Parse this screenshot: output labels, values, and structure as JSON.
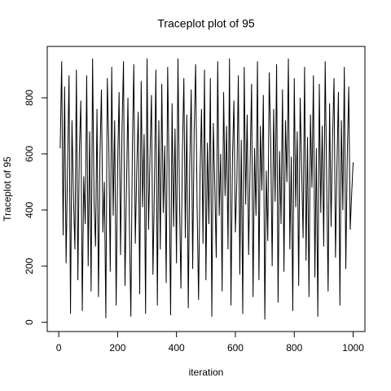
{
  "chart_data": {
    "type": "line",
    "title": "Traceplot plot of 95",
    "x_label": "iteration",
    "y_label": "Traceplot of 95",
    "xlim": [
      -39,
      1040
    ],
    "ylim": [
      -33,
      983
    ],
    "xticks": [
      0,
      200,
      400,
      600,
      800,
      1000
    ],
    "yticks": [
      0,
      200,
      400,
      600,
      800
    ],
    "color": "#000000",
    "x": [
      5,
      10,
      15,
      20,
      25,
      30,
      35,
      40,
      45,
      50,
      55,
      60,
      65,
      70,
      75,
      80,
      85,
      90,
      95,
      100,
      105,
      110,
      115,
      120,
      125,
      130,
      135,
      140,
      145,
      150,
      155,
      160,
      165,
      170,
      175,
      180,
      185,
      190,
      195,
      200,
      205,
      210,
      215,
      220,
      225,
      230,
      235,
      240,
      245,
      250,
      255,
      260,
      265,
      270,
      275,
      280,
      285,
      290,
      295,
      300,
      305,
      310,
      315,
      320,
      325,
      330,
      335,
      340,
      345,
      350,
      355,
      360,
      365,
      370,
      375,
      380,
      385,
      390,
      395,
      400,
      405,
      410,
      415,
      420,
      425,
      430,
      435,
      440,
      445,
      450,
      455,
      460,
      465,
      470,
      475,
      480,
      485,
      490,
      495,
      500,
      505,
      510,
      515,
      520,
      525,
      530,
      535,
      540,
      545,
      550,
      555,
      560,
      565,
      570,
      575,
      580,
      585,
      590,
      595,
      600,
      605,
      610,
      615,
      620,
      625,
      630,
      635,
      640,
      645,
      650,
      655,
      660,
      665,
      670,
      675,
      680,
      685,
      690,
      695,
      700,
      705,
      710,
      715,
      720,
      725,
      730,
      735,
      740,
      745,
      750,
      755,
      760,
      765,
      770,
      775,
      780,
      785,
      790,
      795,
      800,
      805,
      810,
      815,
      820,
      825,
      830,
      835,
      840,
      845,
      850,
      855,
      860,
      865,
      870,
      875,
      880,
      885,
      890,
      895,
      900,
      905,
      910,
      915,
      920,
      925,
      930,
      935,
      940,
      945,
      950,
      955,
      960,
      965,
      970,
      975,
      980,
      985,
      990,
      995,
      1000
    ],
    "values": [
      620,
      930,
      310,
      840,
      210,
      560,
      880,
      30,
      720,
      450,
      260,
      900,
      150,
      610,
      790,
      40,
      520,
      350,
      880,
      200,
      680,
      110,
      940,
      430,
      270,
      760,
      90,
      590,
      830,
      320,
      500,
      15,
      870,
      640,
      180,
      910,
      380,
      720,
      60,
      550,
      820,
      240,
      690,
      930,
      130,
      470,
      800,
      350,
      20,
      610,
      920,
      280,
      540,
      750,
      100,
      860,
      410,
      670,
      30,
      940,
      330,
      590,
      810,
      170,
      480,
      900,
      60,
      720,
      260,
      850,
      390,
      630,
      140,
      910,
      520,
      25,
      780,
      340,
      690,
      210,
      940,
      450,
      120,
      600,
      870,
      300,
      740,
      50,
      560,
      830,
      190,
      680,
      920,
      410,
      80,
      530,
      760,
      280,
      900,
      150,
      640,
      350,
      870,
      20,
      710,
      490,
      230,
      930,
      380,
      600,
      110,
      820,
      450,
      700,
      260,
      940,
      60,
      580,
      790,
      320,
      500,
      880,
      170,
      650,
      30,
      910,
      420,
      740,
      240,
      560,
      850,
      90,
      620,
      380,
      930,
      150,
      700,
      470,
      810,
      10,
      540,
      290,
      890,
      640,
      200,
      760,
      430,
      920,
      70,
      610,
      350,
      830,
      180,
      720,
      500,
      940,
      260,
      590,
      40,
      870,
      410,
      680,
      130,
      800,
      550,
      300,
      910,
      220,
      660,
      90,
      740,
      480,
      880,
      160,
      620,
      20,
      850,
      390,
      700,
      270,
      930,
      510,
      110,
      780,
      340,
      650,
      870,
      230,
      560,
      820,
      60,
      720,
      400,
      910,
      190,
      590,
      840,
      330,
      460,
      570
    ]
  }
}
